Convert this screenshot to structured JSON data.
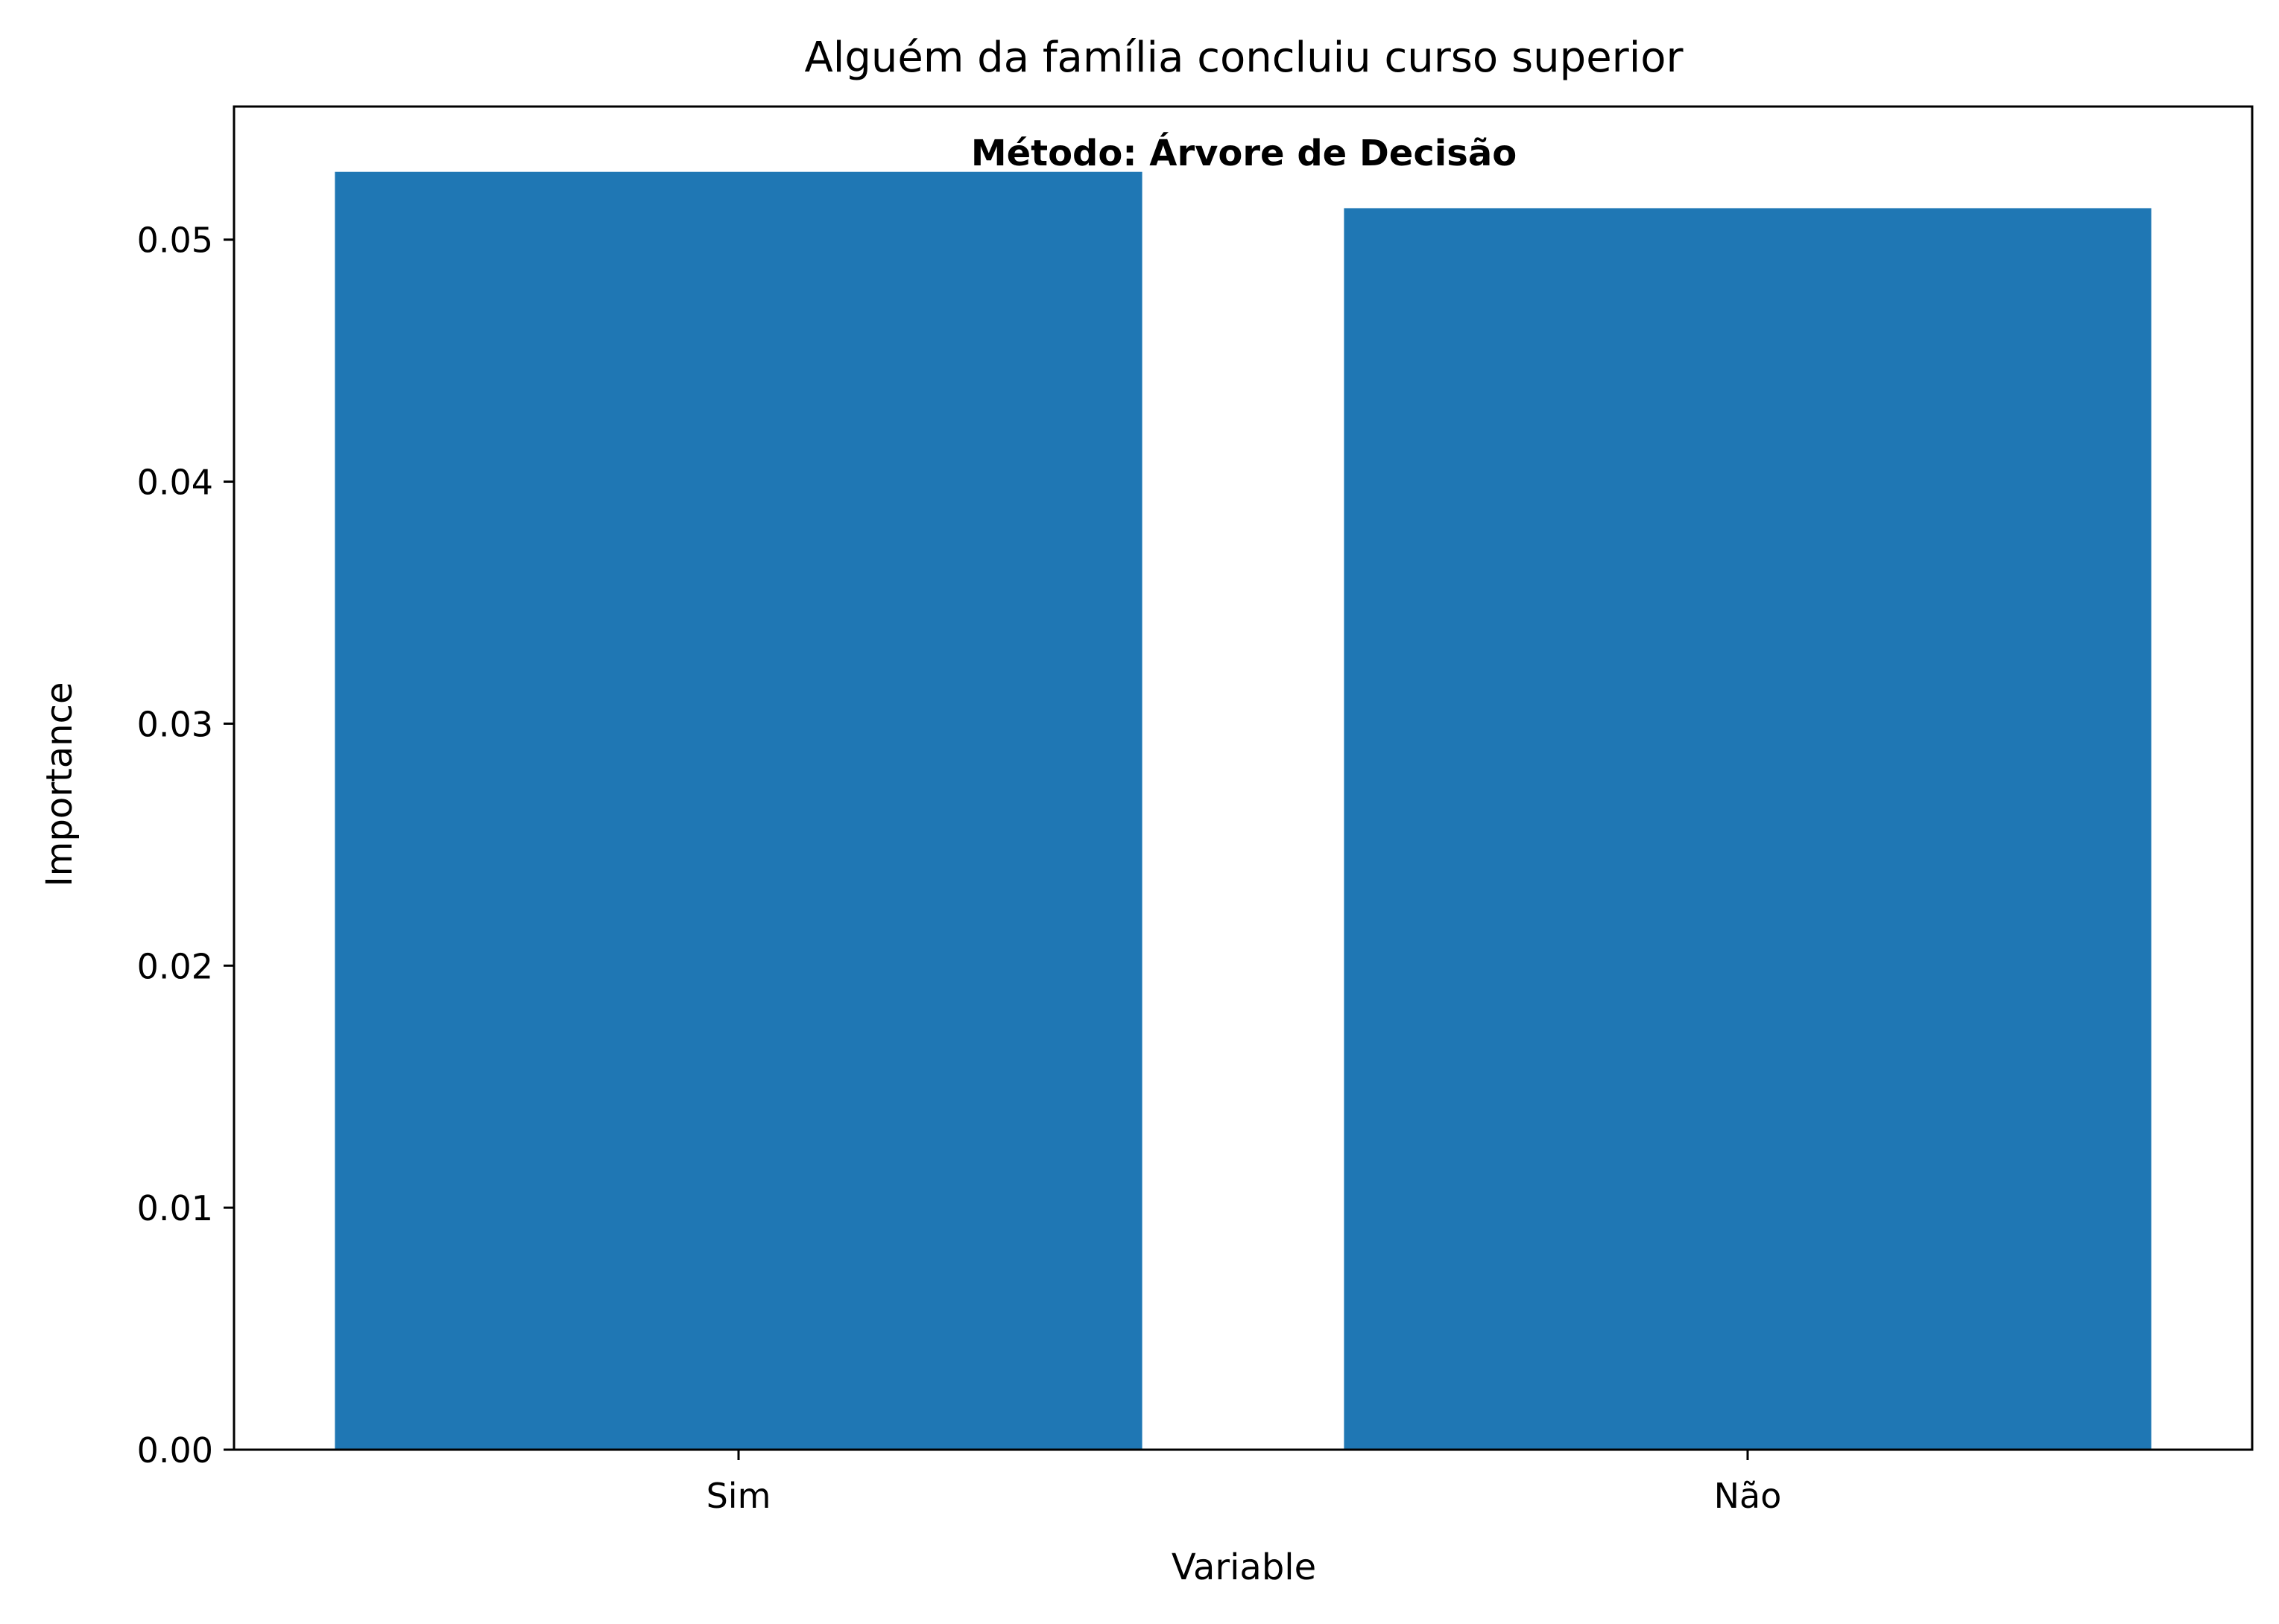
{
  "chart_data": {
    "type": "bar",
    "title": "Alguém da família concluiu curso superior",
    "annotation": "Método: Árvore de Decisão",
    "xlabel": "Variable",
    "ylabel": "Importance",
    "categories": [
      "Sim",
      "Não"
    ],
    "values": [
      0.0528,
      0.0513
    ],
    "ylim": [
      0,
      0.0555
    ],
    "yticks": [
      0.0,
      0.01,
      0.02,
      0.03,
      0.04,
      0.05
    ],
    "ytick_labels": [
      "0.00",
      "0.01",
      "0.02",
      "0.03",
      "0.04",
      "0.05"
    ],
    "grid": false,
    "legend": "none",
    "colors": {
      "bar": "#1f77b4",
      "axis": "#000000",
      "background": "#ffffff"
    }
  }
}
